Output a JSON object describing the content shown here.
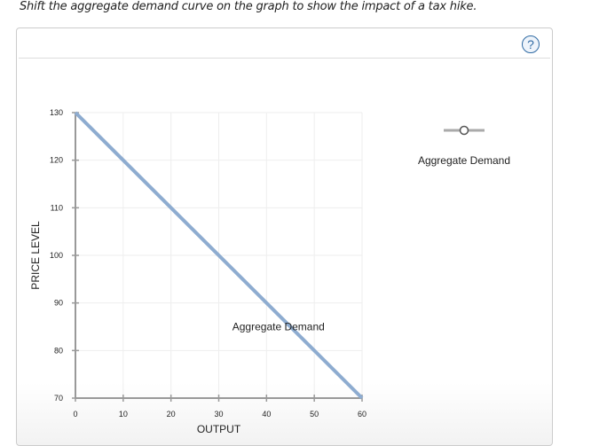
{
  "prompt": "Shift the aggregate demand curve on the graph to show the impact of a tax hike.",
  "help_label": "?",
  "legend": {
    "label": "Aggregate Demand",
    "icon": "line-with-circle-handle"
  },
  "chart_data": {
    "type": "line",
    "xlabel": "OUTPUT",
    "ylabel": "PRICE LEVEL",
    "xlim": [
      0,
      60
    ],
    "ylim": [
      70,
      130
    ],
    "xticks": [
      0,
      10,
      20,
      30,
      40,
      50,
      60
    ],
    "yticks": [
      70,
      80,
      90,
      100,
      110,
      120,
      130
    ],
    "grid": true,
    "legend_placement": "right",
    "series": [
      {
        "name": "Aggregate Demand",
        "color": "#8eacd0",
        "x": [
          0,
          60
        ],
        "y": [
          130,
          70
        ]
      }
    ],
    "annotations": [
      {
        "text": "Aggregate Demand",
        "x": 42.5,
        "y": 85
      }
    ]
  }
}
